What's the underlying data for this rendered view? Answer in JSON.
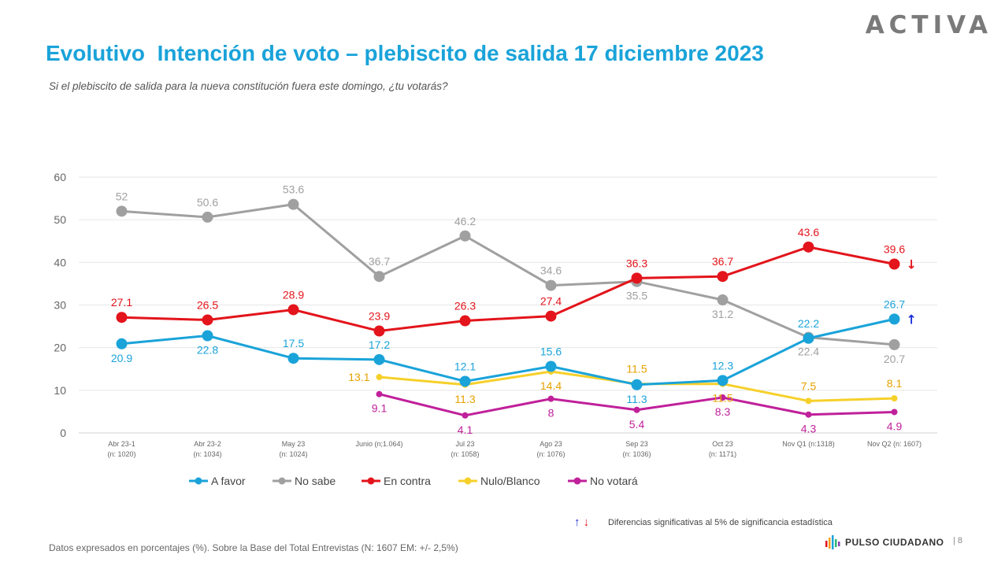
{
  "header": {
    "brand": "ACTIVA",
    "title": "Evolutivo  Intención de voto – plebiscito de salida 17 diciembre 2023",
    "subtitle": "Si el plebiscito de salida para la nueva constitución fuera este domingo, ¿tu votarás?"
  },
  "chart_data": {
    "type": "line",
    "title": "Evolutivo  Intención de voto – plebiscito de salida 17 diciembre 2023",
    "xlabel": "",
    "ylabel": "",
    "ylim": [
      0,
      60
    ],
    "yticks": [
      0,
      10,
      20,
      30,
      40,
      50,
      60
    ],
    "grid": true,
    "legend_position": "bottom",
    "categories": [
      [
        "Abr 23-1",
        "(n: 1020)"
      ],
      [
        "Abr 23-2",
        "(n: 1034)"
      ],
      [
        "May 23",
        "(n: 1024)"
      ],
      [
        "Junio (n;1.064)",
        ""
      ],
      [
        "Jul 23",
        "(n: 1058)"
      ],
      [
        "Ago 23",
        "(n: 1076)"
      ],
      [
        "Sep 23",
        "(n: 1036)"
      ],
      [
        "Oct 23",
        "(n: 1171)"
      ],
      [
        "Nov Q1 (n:1318)",
        ""
      ],
      [
        "Nov Q2 (n: 1607)",
        ""
      ]
    ],
    "series": [
      {
        "name": "A favor",
        "color": "#1aa3d9",
        "marker": "large",
        "values": [
          20.9,
          22.8,
          17.5,
          17.2,
          12.1,
          15.6,
          11.3,
          12.3,
          22.2,
          26.7
        ],
        "label_pos": [
          "below",
          "below",
          "above",
          "above",
          "above",
          "above",
          "below",
          "above",
          "above",
          "above"
        ]
      },
      {
        "name": "No sabe",
        "color": "#a0a0a0",
        "marker": "large",
        "values": [
          52,
          50.6,
          53.6,
          36.7,
          46.2,
          34.6,
          35.5,
          31.2,
          22.4,
          20.7
        ],
        "label_pos": [
          "above",
          "above",
          "above",
          "above",
          "above",
          "above",
          "below",
          "below",
          "below",
          "below"
        ]
      },
      {
        "name": "En contra",
        "color": "#e3141b",
        "marker": "large",
        "values": [
          27.1,
          26.5,
          28.9,
          23.9,
          26.3,
          27.4,
          36.3,
          36.7,
          43.6,
          39.6
        ],
        "label_pos": [
          "above",
          "above",
          "above",
          "above",
          "above",
          "above",
          "above",
          "above",
          "above",
          "above"
        ]
      },
      {
        "name": "Nulo/Blanco",
        "color": "#f6d02a",
        "label_color": "#e6a100",
        "marker": "small",
        "values": [
          null,
          null,
          null,
          13.1,
          11.3,
          14.4,
          11.5,
          11.5,
          7.5,
          8.1
        ],
        "label_pos": [
          null,
          null,
          null,
          "left",
          "below",
          "below",
          "above",
          "below",
          "above",
          "above"
        ]
      },
      {
        "name": "No votará",
        "color": "#c0209a",
        "marker": "small",
        "values": [
          null,
          null,
          null,
          9.1,
          4.1,
          8,
          5.4,
          8.3,
          4.3,
          4.9
        ],
        "label_pos": [
          null,
          null,
          null,
          "below",
          "below",
          "below",
          "below",
          "below",
          "below",
          "below"
        ]
      }
    ],
    "annotations": [
      {
        "series": "En contra",
        "index": 9,
        "symbol": "↓",
        "color": "#e3141b",
        "meaning": "significant decrease"
      },
      {
        "series": "A favor",
        "index": 9,
        "symbol": "↑",
        "color": "#1b2fd9",
        "meaning": "significant increase"
      }
    ]
  },
  "significance_note": {
    "up_icon": "↑",
    "down_icon": "↓",
    "up_color": "#1b2fd9",
    "down_color": "#e3141b",
    "text": "Diferencias  significativas  al 5% de significancia estadística"
  },
  "footer": {
    "note": "Datos expresados en porcentajes (%). Sobre la Base del Total Entrevistas (N: 1607  EM: +/- 2,5%)",
    "logo_text": "PULSO CIUDADANO",
    "page_number": "|  8"
  }
}
